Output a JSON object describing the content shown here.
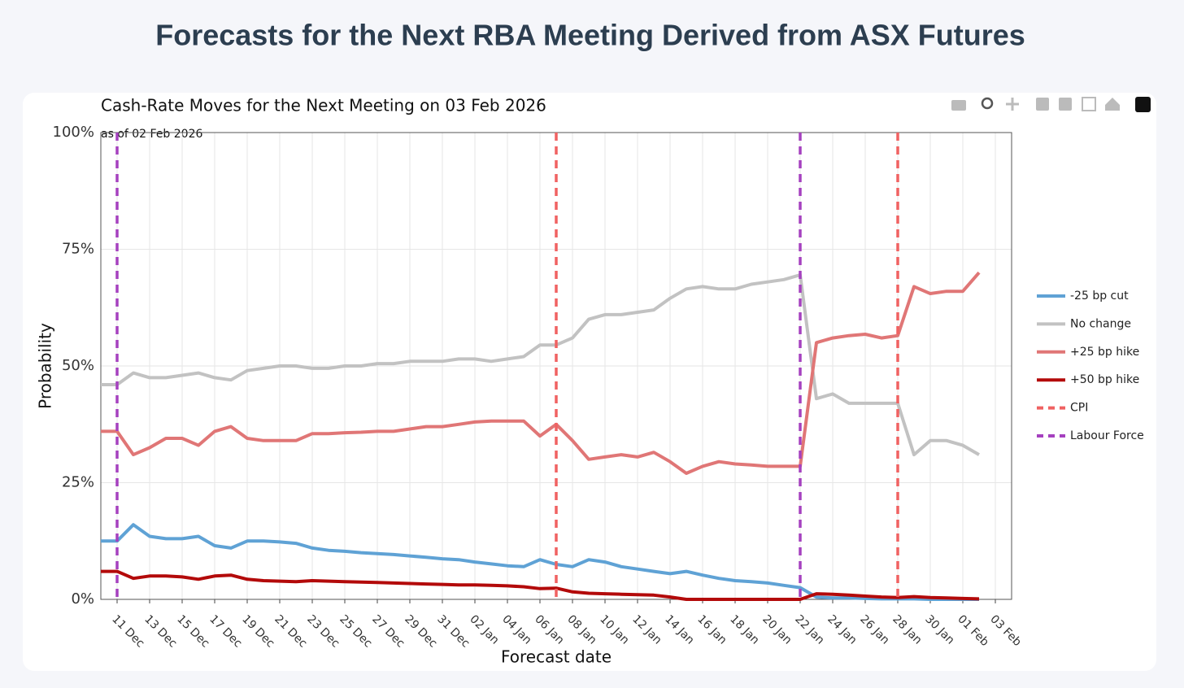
{
  "page_title": "Forecasts for the Next RBA Meeting Derived from ASX Futures",
  "chart_data": {
    "type": "line",
    "title": "Cash-Rate Moves for the Next Meeting on 03 Feb 2026",
    "subtitle": "as of 02 Feb 2026",
    "x_label": "Forecast date",
    "y_label": "Probability",
    "x": [
      "2025-12-10",
      "2025-12-11",
      "2025-12-12",
      "2025-12-13",
      "2025-12-14",
      "2025-12-15",
      "2025-12-16",
      "2025-12-17",
      "2025-12-18",
      "2025-12-19",
      "2025-12-20",
      "2025-12-21",
      "2025-12-22",
      "2025-12-23",
      "2025-12-24",
      "2025-12-25",
      "2025-12-26",
      "2025-12-27",
      "2025-12-28",
      "2025-12-29",
      "2025-12-30",
      "2025-12-31",
      "2026-01-01",
      "2026-01-02",
      "2026-01-03",
      "2026-01-04",
      "2026-01-05",
      "2026-01-06",
      "2026-01-07",
      "2026-01-08",
      "2026-01-09",
      "2026-01-10",
      "2026-01-11",
      "2026-01-12",
      "2026-01-13",
      "2026-01-14",
      "2026-01-15",
      "2026-01-16",
      "2026-01-17",
      "2026-01-18",
      "2026-01-19",
      "2026-01-20",
      "2026-01-21",
      "2026-01-22",
      "2026-01-23",
      "2026-01-24",
      "2026-01-25",
      "2026-01-26",
      "2026-01-27",
      "2026-01-28",
      "2026-01-29",
      "2026-01-30",
      "2026-01-31",
      "2026-02-01",
      "2026-02-02"
    ],
    "series": [
      {
        "name": "-25 bp cut",
        "color": "#5fa2d5",
        "values": [
          12.5,
          12.5,
          16,
          13.5,
          13,
          13,
          13.5,
          11.5,
          11,
          12.5,
          12.5,
          12.3,
          12,
          11,
          10.5,
          10.3,
          10,
          9.8,
          9.6,
          9.3,
          9,
          8.7,
          8.5,
          8,
          7.6,
          7.2,
          7,
          8.5,
          7.5,
          7,
          8.5,
          8,
          7,
          6.5,
          6,
          5.5,
          6,
          5.2,
          4.5,
          4,
          3.8,
          3.5,
          3,
          2.5,
          0.5,
          0.3,
          0.3,
          0.2,
          0.1,
          0.1,
          0.1,
          0,
          0,
          0,
          0
        ]
      },
      {
        "name": "No change",
        "color": "#c2c2c2",
        "values": [
          46,
          46,
          48.5,
          47.5,
          47.5,
          48,
          48.5,
          47.5,
          47,
          49,
          49.5,
          50,
          50,
          49.5,
          49.5,
          50,
          50,
          50.5,
          50.5,
          51,
          51,
          51,
          51.5,
          51.5,
          51,
          51.5,
          52,
          54.5,
          54.5,
          56,
          60,
          61,
          61,
          61.5,
          62,
          64.5,
          66.5,
          67,
          66.5,
          66.5,
          67.5,
          68,
          68.5,
          69.5,
          43,
          44,
          42,
          42,
          42,
          42,
          31,
          34,
          34,
          33,
          31
        ]
      },
      {
        "name": "+25 bp hike",
        "color": "#e07676",
        "values": [
          36,
          36,
          31,
          32.5,
          34.5,
          34.5,
          33,
          36,
          37,
          34.5,
          34,
          34,
          34,
          35.5,
          35.5,
          35.7,
          35.8,
          36,
          36,
          36.5,
          37,
          37,
          37.5,
          38,
          38.2,
          38.2,
          38.2,
          35,
          37.5,
          34,
          30,
          30.5,
          31,
          30.5,
          31.5,
          29.5,
          27,
          28.5,
          29.5,
          29,
          28.8,
          28.5,
          28.5,
          28.5,
          55,
          56,
          56.5,
          56.8,
          56,
          56.5,
          67,
          65.5,
          66,
          66,
          70
        ]
      },
      {
        "name": "+50 bp hike",
        "color": "#b30a0a",
        "values": [
          6,
          6,
          4.5,
          5,
          5,
          4.8,
          4.3,
          5,
          5.2,
          4.3,
          4,
          3.9,
          3.8,
          4,
          3.9,
          3.8,
          3.7,
          3.6,
          3.5,
          3.4,
          3.3,
          3.2,
          3.1,
          3.1,
          3,
          2.9,
          2.7,
          2.3,
          2.4,
          1.6,
          1.3,
          1.2,
          1.1,
          1,
          0.9,
          0.5,
          0,
          0,
          0,
          0,
          0,
          0,
          0,
          0,
          1.2,
          1.1,
          0.9,
          0.7,
          0.5,
          0.4,
          0.6,
          0.4,
          0.3,
          0.2,
          0.1
        ]
      }
    ],
    "events": [
      {
        "name": "CPI",
        "color": "#f06262",
        "x": [
          "2026-01-07",
          "2026-01-28"
        ]
      },
      {
        "name": "Labour Force",
        "color": "#a541bf",
        "x": [
          "2025-12-11",
          "2026-01-22"
        ]
      }
    ],
    "xlim": [
      "2025-12-10",
      "2026-02-04"
    ],
    "xticks": [
      {
        "value": "2025-12-11",
        "label": "11 Dec"
      },
      {
        "value": "2025-12-13",
        "label": "13 Dec"
      },
      {
        "value": "2025-12-15",
        "label": "15 Dec"
      },
      {
        "value": "2025-12-17",
        "label": "17 Dec"
      },
      {
        "value": "2025-12-19",
        "label": "19 Dec"
      },
      {
        "value": "2025-12-21",
        "label": "21 Dec"
      },
      {
        "value": "2025-12-23",
        "label": "23 Dec"
      },
      {
        "value": "2025-12-25",
        "label": "25 Dec"
      },
      {
        "value": "2025-12-27",
        "label": "27 Dec"
      },
      {
        "value": "2025-12-29",
        "label": "29 Dec"
      },
      {
        "value": "2025-12-31",
        "label": "31 Dec"
      },
      {
        "value": "2026-01-02",
        "label": "02 Jan"
      },
      {
        "value": "2026-01-04",
        "label": "04 Jan"
      },
      {
        "value": "2026-01-06",
        "label": "06 Jan"
      },
      {
        "value": "2026-01-08",
        "label": "08 Jan"
      },
      {
        "value": "2026-01-10",
        "label": "10 Jan"
      },
      {
        "value": "2026-01-12",
        "label": "12 Jan"
      },
      {
        "value": "2026-01-14",
        "label": "14 Jan"
      },
      {
        "value": "2026-01-16",
        "label": "16 Jan"
      },
      {
        "value": "2026-01-18",
        "label": "18 Jan"
      },
      {
        "value": "2026-01-20",
        "label": "20 Jan"
      },
      {
        "value": "2026-01-22",
        "label": "22 Jan"
      },
      {
        "value": "2026-01-24",
        "label": "24 Jan"
      },
      {
        "value": "2026-01-26",
        "label": "26 Jan"
      },
      {
        "value": "2026-01-28",
        "label": "28 Jan"
      },
      {
        "value": "2026-01-30",
        "label": "30 Jan"
      },
      {
        "value": "2026-02-01",
        "label": "01 Feb"
      },
      {
        "value": "2026-02-03",
        "label": "03 Feb"
      }
    ],
    "ylim": [
      0,
      100
    ],
    "yticks": [
      {
        "value": 0,
        "label": "0%"
      },
      {
        "value": 25,
        "label": "25%"
      },
      {
        "value": 50,
        "label": "50%"
      },
      {
        "value": 75,
        "label": "75%"
      },
      {
        "value": 100,
        "label": "100%"
      }
    ],
    "grid": true,
    "legend": "right"
  }
}
